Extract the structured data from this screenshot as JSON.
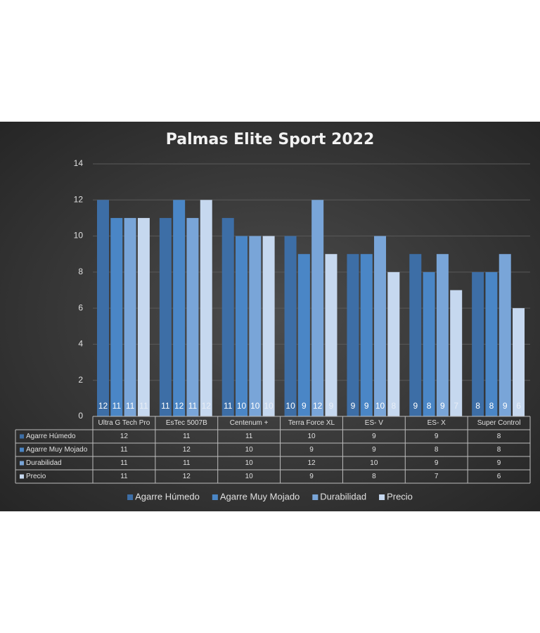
{
  "chart_data": {
    "type": "bar",
    "title": "Palmas Elite Sport 2022",
    "categories": [
      "Ultra G Tech Pro",
      "EsTec 5007B",
      "Centenum +",
      "Terra Force XL",
      "ES- V",
      "ES- X",
      "Super Control"
    ],
    "series": [
      {
        "name": "Agarre Húmedo",
        "color": "#3d6ea6",
        "values": [
          12,
          11,
          11,
          10,
          9,
          9,
          8
        ]
      },
      {
        "name": "Agarre Muy Mojado",
        "color": "#4a86c6",
        "values": [
          11,
          12,
          10,
          9,
          9,
          8,
          8
        ]
      },
      {
        "name": "Durabilidad",
        "color": "#79a5d8",
        "values": [
          11,
          11,
          10,
          12,
          10,
          9,
          9
        ]
      },
      {
        "name": "Precio",
        "color": "#c6d8ef",
        "values": [
          11,
          12,
          10,
          9,
          8,
          7,
          6
        ]
      }
    ],
    "ylim": [
      0,
      14
    ],
    "yticks": [
      0,
      2,
      4,
      6,
      8,
      10,
      12,
      14
    ],
    "grid": true,
    "legend": "bottom",
    "data_table": true
  }
}
